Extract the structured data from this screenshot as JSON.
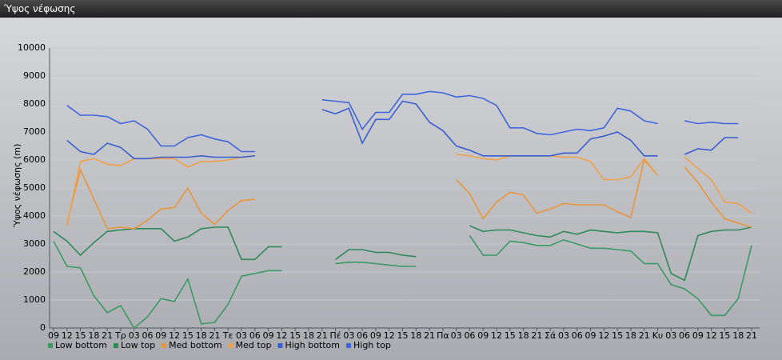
{
  "window_title": "Ύψος νέφωσης",
  "chart_data": {
    "type": "line",
    "y_label": "Ύψος νέφωσης (m)",
    "categories": [
      "09",
      "12",
      "15",
      "18",
      "21",
      "Τρ",
      "03",
      "06",
      "09",
      "12",
      "15",
      "18",
      "21",
      "Τε",
      "03",
      "06",
      "09",
      "12",
      "15",
      "18",
      "21",
      "Πέ",
      "03",
      "06",
      "09",
      "12",
      "15",
      "18",
      "21",
      "Πα",
      "03",
      "06",
      "09",
      "12",
      "15",
      "18",
      "21",
      "Σά",
      "03",
      "06",
      "09",
      "12",
      "15",
      "18",
      "21",
      "Κυ",
      "03",
      "06",
      "09",
      "12",
      "15",
      "18",
      "21"
    ],
    "ylim": [
      0,
      10000
    ],
    "yticks": [
      0,
      1000,
      2000,
      3000,
      4000,
      5000,
      6000,
      7000,
      8000,
      9000,
      10000
    ],
    "grid": true,
    "series": [
      {
        "name": "Low bottom",
        "color": "#3a9a64",
        "values": [
          3100,
          2200,
          2150,
          1150,
          550,
          800,
          0,
          400,
          1050,
          950,
          1750,
          150,
          200,
          850,
          1850,
          1950,
          2050,
          2050,
          null,
          null,
          null,
          2300,
          2350,
          2350,
          2300,
          2250,
          2200,
          2200,
          null,
          null,
          null,
          3300,
          2600,
          2600,
          3100,
          3050,
          2950,
          2950,
          3150,
          3000,
          2850,
          2850,
          2800,
          2750,
          2300,
          2300,
          1550,
          1400,
          1050,
          450,
          450,
          1050,
          2950
        ]
      },
      {
        "name": "Low top",
        "color": "#2e8a58",
        "values": [
          3450,
          3100,
          2600,
          3050,
          3450,
          3500,
          3550,
          3550,
          3550,
          3100,
          3250,
          3550,
          3600,
          3600,
          2450,
          2450,
          2900,
          2900,
          null,
          null,
          null,
          2450,
          2800,
          2800,
          2700,
          2700,
          2600,
          2550,
          null,
          null,
          null,
          3650,
          3450,
          3500,
          3500,
          3400,
          3300,
          3250,
          3450,
          3350,
          3500,
          3450,
          3400,
          3450,
          3450,
          3400,
          1950,
          1700,
          3300,
          3450,
          3500,
          3500,
          3600
        ]
      },
      {
        "name": "Med bottom",
        "color": "#e8963c",
        "values": [
          null,
          3750,
          5650,
          4600,
          3550,
          3600,
          3550,
          3850,
          4250,
          4300,
          5000,
          4100,
          3700,
          4200,
          4550,
          4600,
          null,
          null,
          null,
          null,
          null,
          null,
          null,
          null,
          null,
          null,
          null,
          null,
          null,
          null,
          5300,
          4800,
          3900,
          4500,
          4850,
          4750,
          4100,
          4250,
          4450,
          4400,
          4400,
          4400,
          4150,
          3950,
          6000,
          5450,
          null,
          5750,
          5200,
          4500,
          3900,
          3750,
          3600
        ]
      },
      {
        "name": "Med top",
        "color": "#f0a04a",
        "values": [
          null,
          3650,
          5950,
          6050,
          5850,
          5800,
          6050,
          6050,
          6050,
          6050,
          5750,
          5950,
          5950,
          6000,
          6100,
          6150,
          null,
          null,
          null,
          null,
          null,
          null,
          null,
          null,
          null,
          null,
          null,
          null,
          null,
          null,
          6200,
          6150,
          6050,
          6000,
          6150,
          6150,
          6150,
          6150,
          6100,
          6100,
          5950,
          5300,
          5300,
          5400,
          6050,
          5450,
          null,
          6100,
          5700,
          5300,
          4500,
          4450,
          4100
        ]
      },
      {
        "name": "High bottom",
        "color": "#3a5fd0",
        "values": [
          null,
          6700,
          6300,
          6200,
          6600,
          6450,
          6050,
          6050,
          6100,
          6100,
          6100,
          6150,
          6100,
          6100,
          6100,
          6150,
          null,
          null,
          null,
          null,
          7800,
          7650,
          7850,
          6600,
          7450,
          7450,
          8100,
          8000,
          7350,
          7050,
          6500,
          6350,
          6150,
          6150,
          6150,
          6150,
          6150,
          6150,
          6250,
          6250,
          6750,
          6850,
          7000,
          6700,
          6150,
          6150,
          null,
          6200,
          6400,
          6350,
          6800,
          6800,
          null
        ]
      },
      {
        "name": "High top",
        "color": "#3f66dc",
        "values": [
          null,
          7950,
          7600,
          7600,
          7550,
          7300,
          7400,
          7100,
          6500,
          6500,
          6800,
          6900,
          6750,
          6650,
          6300,
          6300,
          null,
          null,
          null,
          null,
          8150,
          8100,
          8050,
          7100,
          7700,
          7700,
          8350,
          8350,
          8450,
          8400,
          8250,
          8300,
          8200,
          7950,
          7150,
          7150,
          6950,
          6900,
          7000,
          7100,
          7050,
          7150,
          7850,
          7750,
          7400,
          7300,
          null,
          7400,
          7300,
          7350,
          7300,
          7300,
          null
        ]
      }
    ]
  }
}
